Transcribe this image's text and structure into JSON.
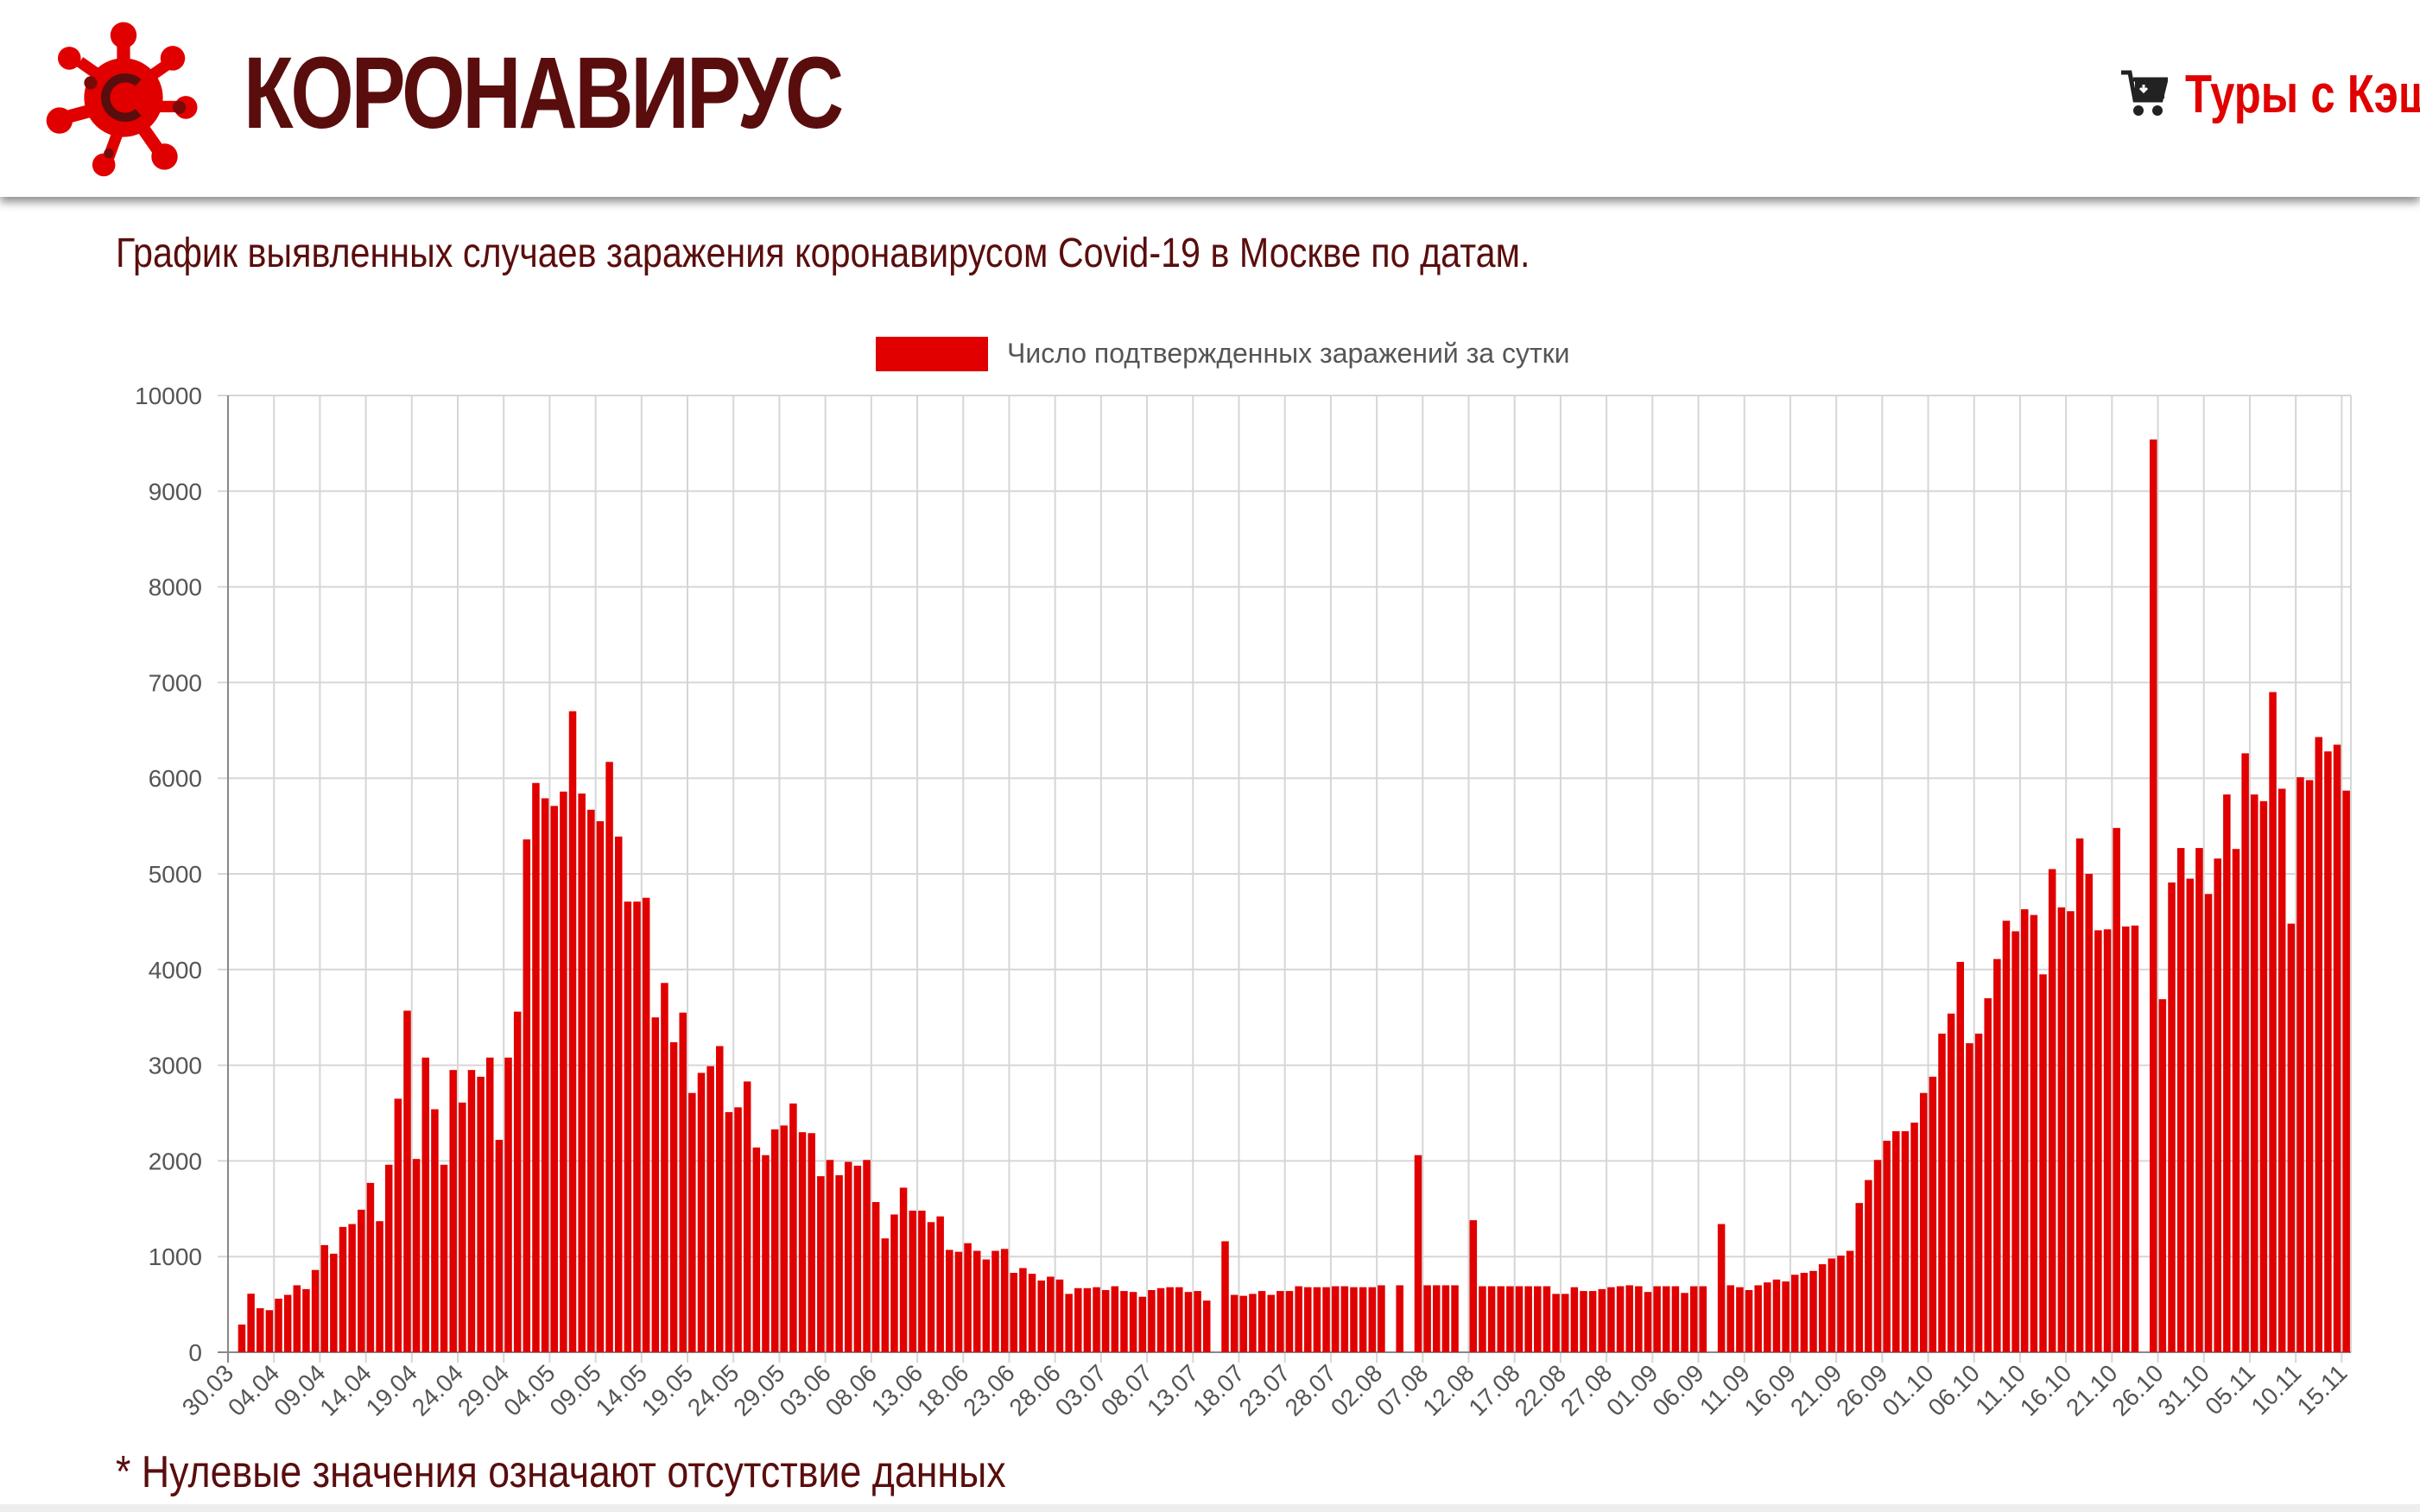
{
  "header": {
    "site_title": "КОРОНАВИРУС",
    "tours_link": "Туры с Кэш",
    "logo_icon": "virus-logo-icon",
    "cart_icon": "shopping-cart-icon",
    "title_color": "#5a0d0d",
    "accent_color": "#e00000"
  },
  "page": {
    "subtitle": "График выявленных случаев заражения коронавирусом Covid-19 в Москве по датам.",
    "footnote": "* Нулевые значения означают отсутствие данных"
  },
  "chart_data": {
    "type": "bar",
    "legend": "Число подтвержденных заражений за сутки",
    "legend_position": "top-center",
    "bar_color": "#e00000",
    "grid": true,
    "ylim": [
      0,
      10000
    ],
    "yticks": [
      "0",
      "1000",
      "2000",
      "3000",
      "4000",
      "5000",
      "6000",
      "7000",
      "8000",
      "9000",
      "10000"
    ],
    "x_tick_labels": [
      "30.03",
      "04.04",
      "09.04",
      "14.04",
      "19.04",
      "24.04",
      "29.04",
      "04.05",
      "09.05",
      "14.05",
      "19.05",
      "24.05",
      "29.05",
      "03.06",
      "08.06",
      "13.06",
      "18.06",
      "23.06",
      "28.06",
      "03.07",
      "08.07",
      "13.07",
      "18.07",
      "23.07",
      "28.07",
      "02.08",
      "07.08",
      "12.08",
      "17.08",
      "22.08",
      "27.08",
      "01.09",
      "06.09",
      "11.09",
      "16.09",
      "21.09",
      "26.09",
      "01.10",
      "06.10",
      "11.10",
      "16.10",
      "21.10",
      "26.10",
      "31.10",
      "05.11",
      "10.11",
      "15.11"
    ],
    "start_date": "30.03",
    "values": [
      0,
      290,
      612,
      460,
      440,
      560,
      600,
      700,
      660,
      860,
      1120,
      1030,
      1310,
      1340,
      1490,
      1770,
      1370,
      1960,
      2650,
      3570,
      2020,
      3080,
      2540,
      1960,
      2950,
      2610,
      2950,
      2880,
      3080,
      2220,
      3080,
      3560,
      5360,
      5950,
      5790,
      5710,
      5860,
      6700,
      5840,
      5670,
      5550,
      6170,
      5390,
      4710,
      4710,
      4750,
      3500,
      3860,
      3240,
      3550,
      2710,
      2920,
      2990,
      3200,
      2510,
      2560,
      2830,
      2140,
      2060,
      2330,
      2370,
      2600,
      2300,
      2290,
      1840,
      2010,
      1850,
      1990,
      1950,
      2010,
      1570,
      1190,
      1440,
      1720,
      1480,
      1480,
      1360,
      1420,
      1070,
      1050,
      1140,
      1060,
      970,
      1060,
      1080,
      830,
      880,
      820,
      750,
      790,
      760,
      610,
      670,
      670,
      680,
      650,
      690,
      640,
      630,
      580,
      650,
      670,
      680,
      680,
      630,
      640,
      540,
      0,
      1160,
      600,
      590,
      610,
      640,
      600,
      640,
      640,
      690,
      680,
      680,
      680,
      690,
      690,
      680,
      680,
      680,
      700,
      0,
      700,
      0,
      2060,
      700,
      700,
      700,
      700,
      0,
      1380,
      690,
      690,
      690,
      690,
      690,
      690,
      690,
      690,
      610,
      610,
      680,
      640,
      640,
      660,
      680,
      690,
      700,
      690,
      630,
      690,
      690,
      690,
      620,
      690,
      690,
      0,
      1340,
      700,
      680,
      650,
      700,
      730,
      760,
      740,
      810,
      830,
      850,
      920,
      980,
      1010,
      1060,
      1560,
      1800,
      2010,
      2210,
      2310,
      2310,
      2400,
      2710,
      2880,
      3330,
      3540,
      4080,
      3230,
      3330,
      3700,
      4110,
      4510,
      4400,
      4630,
      4570,
      3950,
      5050,
      4650,
      4610,
      5370,
      5000,
      4410,
      4420,
      5480,
      4450,
      4460,
      0,
      9540,
      3690,
      4910,
      5270,
      4950,
      5270,
      4790,
      5160,
      5830,
      5260,
      6260,
      5830,
      5760,
      6900,
      5890,
      4480,
      6010,
      5980,
      6430,
      6280,
      6350,
      5870
    ]
  }
}
